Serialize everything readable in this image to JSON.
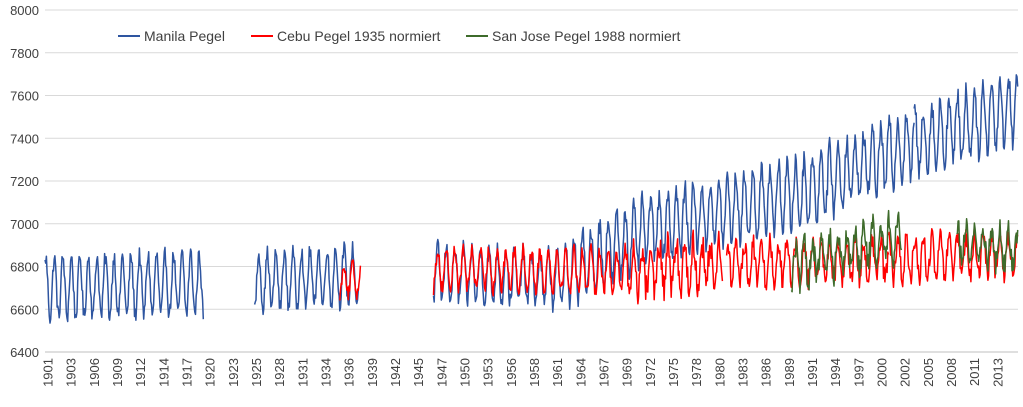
{
  "chart_data": {
    "type": "line",
    "title": "",
    "xlabel": "",
    "ylabel": "",
    "ylim": [
      6400,
      8000
    ],
    "yticks": [
      6400,
      6600,
      6800,
      7000,
      7200,
      7400,
      7600,
      7800,
      8000
    ],
    "x_tick_labels": [
      "1901",
      "1903",
      "1906",
      "1909",
      "1912",
      "1914",
      "1917",
      "1920",
      "1923",
      "1925",
      "1928",
      "1931",
      "1934",
      "1936",
      "1939",
      "1942",
      "1945",
      "1947",
      "1950",
      "1953",
      "1956",
      "1958",
      "1961",
      "1964",
      "1967",
      "1969",
      "1972",
      "1975",
      "1978",
      "1980",
      "1983",
      "1986",
      "1989",
      "1991",
      "1994",
      "1997",
      "2000",
      "2002",
      "2005",
      "2008",
      "2011",
      "2013"
    ],
    "xlim": [
      1901.0,
      2015.2
    ],
    "grid": "horizontal",
    "legend_position": "top-left",
    "series": [
      {
        "name": "Manila Pegel",
        "color": "#2E55A0",
        "segments": [
          {
            "start": 1901.0,
            "end": 1919.6,
            "base_start": 6700,
            "base_end": 6720,
            "amp": 140,
            "noise": 40
          },
          {
            "start": 1925.6,
            "end": 1937.8,
            "base_start": 6730,
            "base_end": 6760,
            "amp": 130,
            "noise": 35
          },
          {
            "start": 1946.6,
            "end": 1962.0,
            "base_start": 6770,
            "base_end": 6740,
            "amp": 120,
            "noise": 40
          },
          {
            "start": 1962.0,
            "end": 1972.0,
            "base_start": 6760,
            "base_end": 6980,
            "amp": 150,
            "noise": 45
          },
          {
            "start": 1972.0,
            "end": 1990.0,
            "base_start": 6980,
            "base_end": 7150,
            "amp": 150,
            "noise": 45
          },
          {
            "start": 1990.0,
            "end": 2003.0,
            "base_start": 7150,
            "base_end": 7380,
            "amp": 150,
            "noise": 50
          },
          {
            "start": 2003.0,
            "end": 2015.2,
            "base_start": 7380,
            "base_end": 7550,
            "amp": 150,
            "noise": 50
          }
        ]
      },
      {
        "name": "Cebu Pegel 1935 normiert",
        "color": "#FF0000",
        "segments": [
          {
            "start": 1935.6,
            "end": 1938.0,
            "base_start": 6740,
            "base_end": 6740,
            "amp": 70,
            "noise": 30
          },
          {
            "start": 1946.6,
            "end": 1969.0,
            "base_start": 6790,
            "base_end": 6780,
            "amp": 90,
            "noise": 35
          },
          {
            "start": 1969.0,
            "end": 1980.5,
            "base_start": 6780,
            "base_end": 6820,
            "amp": 100,
            "noise": 70
          },
          {
            "start": 1981.0,
            "end": 2000.0,
            "base_start": 6820,
            "base_end": 6830,
            "amp": 90,
            "noise": 50
          },
          {
            "start": 2000.0,
            "end": 2015.2,
            "base_start": 6830,
            "base_end": 6860,
            "amp": 90,
            "noise": 50
          }
        ]
      },
      {
        "name": "San Jose Pegel 1988 normiert",
        "color": "#3E6B2B",
        "segments": [
          {
            "start": 1988.6,
            "end": 2001.5,
            "base_start": 6800,
            "base_end": 6950,
            "amp": 90,
            "noise": 60
          },
          {
            "start": 2008.0,
            "end": 2015.2,
            "base_start": 6920,
            "base_end": 6880,
            "amp": 80,
            "noise": 50
          }
        ]
      }
    ]
  }
}
